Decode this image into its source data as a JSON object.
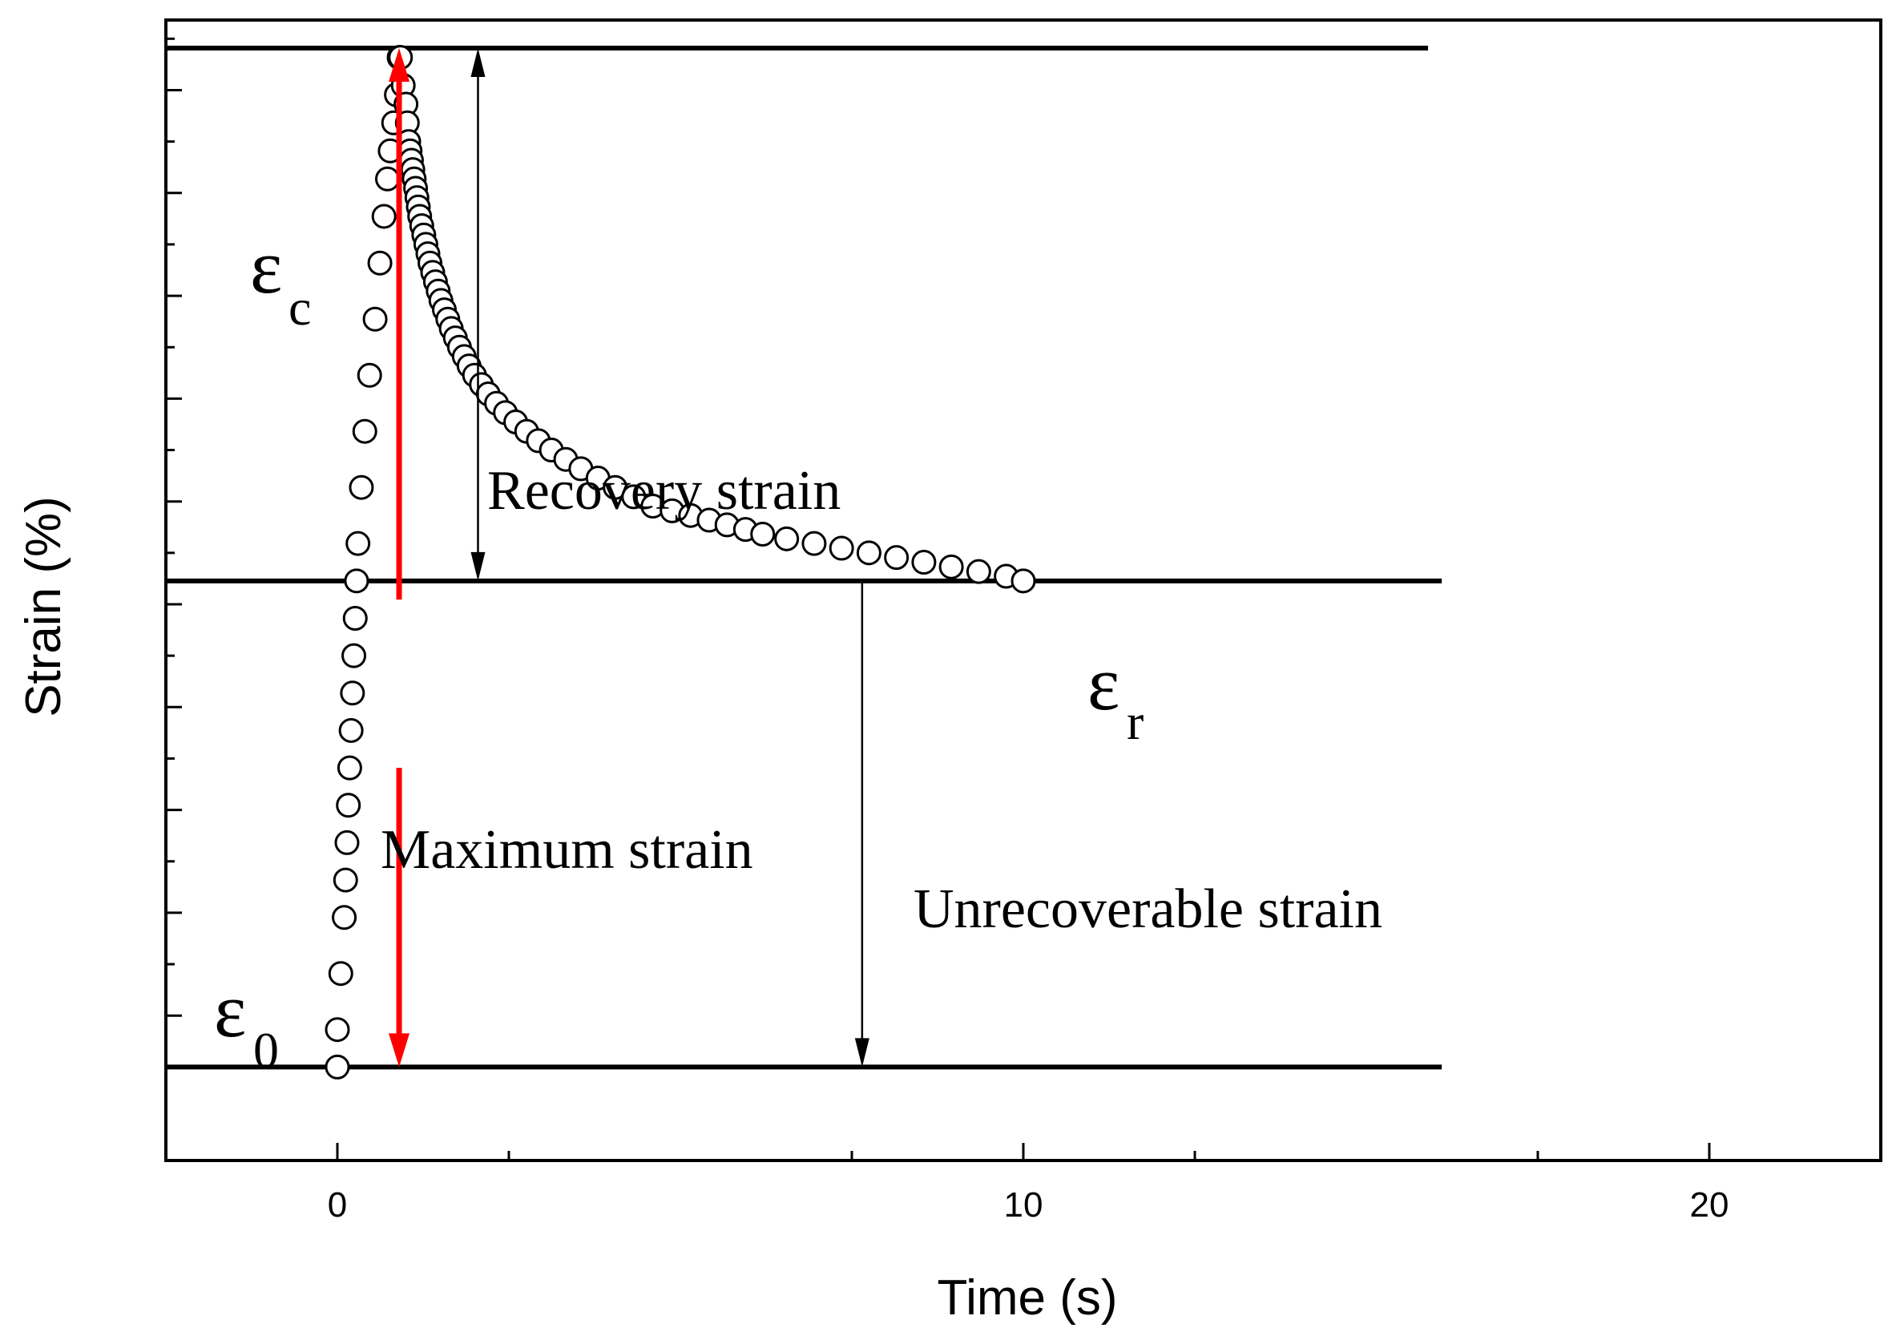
{
  "chart_data": {
    "type": "scatter",
    "title": "",
    "xlabel": "Time (s)",
    "ylabel": "Strain (%)",
    "xlim": [
      -2.5,
      22.5
    ],
    "ylim": [
      -0.1,
      1.12
    ],
    "x_ticks": [
      0,
      10,
      20
    ],
    "x_tick_labels": [
      "0",
      "10",
      "20"
    ],
    "y_tick_labels": [],
    "grid": false,
    "series": [
      {
        "name": "strain",
        "marker": "open-circle",
        "x": [
          0.0,
          0.0,
          0.05,
          0.1,
          0.12,
          0.14,
          0.16,
          0.18,
          0.2,
          0.22,
          0.24,
          0.26,
          0.28,
          0.3,
          0.35,
          0.4,
          0.47,
          0.55,
          0.62,
          0.68,
          0.73,
          0.77,
          0.82,
          0.86,
          0.9,
          0.92,
          0.96,
          1.0,
          1.02,
          1.04,
          1.06,
          1.08,
          1.1,
          1.12,
          1.14,
          1.16,
          1.18,
          1.2,
          1.23,
          1.26,
          1.29,
          1.32,
          1.35,
          1.39,
          1.43,
          1.47,
          1.51,
          1.56,
          1.61,
          1.66,
          1.72,
          1.78,
          1.85,
          1.92,
          2.0,
          2.1,
          2.2,
          2.32,
          2.45,
          2.6,
          2.76,
          2.93,
          3.12,
          3.33,
          3.55,
          3.8,
          4.05,
          4.32,
          4.6,
          4.88,
          5.15,
          5.42,
          5.68,
          5.95,
          6.2,
          6.55,
          6.95,
          7.35,
          7.75,
          8.15,
          8.55,
          8.95,
          9.35,
          9.75,
          10.0
        ],
        "y": [
          0.0,
          0.04,
          0.1,
          0.16,
          0.2,
          0.24,
          0.28,
          0.32,
          0.36,
          0.4,
          0.44,
          0.48,
          0.52,
          0.56,
          0.62,
          0.68,
          0.74,
          0.8,
          0.86,
          0.91,
          0.95,
          0.98,
          1.01,
          1.04,
          1.08,
          1.08,
          1.05,
          1.03,
          1.01,
          0.99,
          0.98,
          0.97,
          0.96,
          0.95,
          0.94,
          0.93,
          0.92,
          0.91,
          0.9,
          0.89,
          0.88,
          0.87,
          0.86,
          0.85,
          0.84,
          0.83,
          0.82,
          0.81,
          0.8,
          0.79,
          0.78,
          0.77,
          0.76,
          0.75,
          0.74,
          0.73,
          0.72,
          0.71,
          0.7,
          0.69,
          0.68,
          0.67,
          0.66,
          0.65,
          0.64,
          0.63,
          0.62,
          0.61,
          0.6,
          0.595,
          0.59,
          0.585,
          0.58,
          0.575,
          0.57,
          0.565,
          0.56,
          0.555,
          0.55,
          0.545,
          0.54,
          0.535,
          0.53,
          0.525,
          0.52
        ]
      }
    ],
    "reference_lines": [
      {
        "name": "epsilon-c-line",
        "y": 1.09,
        "x_start": -2.5,
        "x_end": 15.9
      },
      {
        "name": "epsilon-r-line",
        "y": 0.52,
        "x_start": -2.5,
        "x_end": 16.1
      },
      {
        "name": "epsilon-0-line",
        "y": 0.0,
        "x_start": -2.5,
        "x_end": 16.1
      }
    ],
    "arrows": [
      {
        "name": "maximum-strain-arrow",
        "color": "#ff0000",
        "x": 0.9,
        "y_from": 0.0,
        "y_to": 1.09
      },
      {
        "name": "recovery-strain-arrow",
        "color": "#000000",
        "x": 2.05,
        "y_from": 0.52,
        "y_to": 1.09
      },
      {
        "name": "unrecoverable-strain-arrow",
        "color": "#000000",
        "x": 7.65,
        "y_from": 0.52,
        "y_to": 0.0
      }
    ],
    "annotations": {
      "recovery": "Recovery strain",
      "maximum": "Maximum strain",
      "unrecoverable": "Unrecoverable strain",
      "eps_symbol": "ε",
      "eps_c_sub": "c",
      "eps_r_sub": "r",
      "eps_0_sub": "0"
    },
    "colors": {
      "axis": "#000000",
      "marker": "#000000",
      "accent": "#ff0000"
    }
  }
}
